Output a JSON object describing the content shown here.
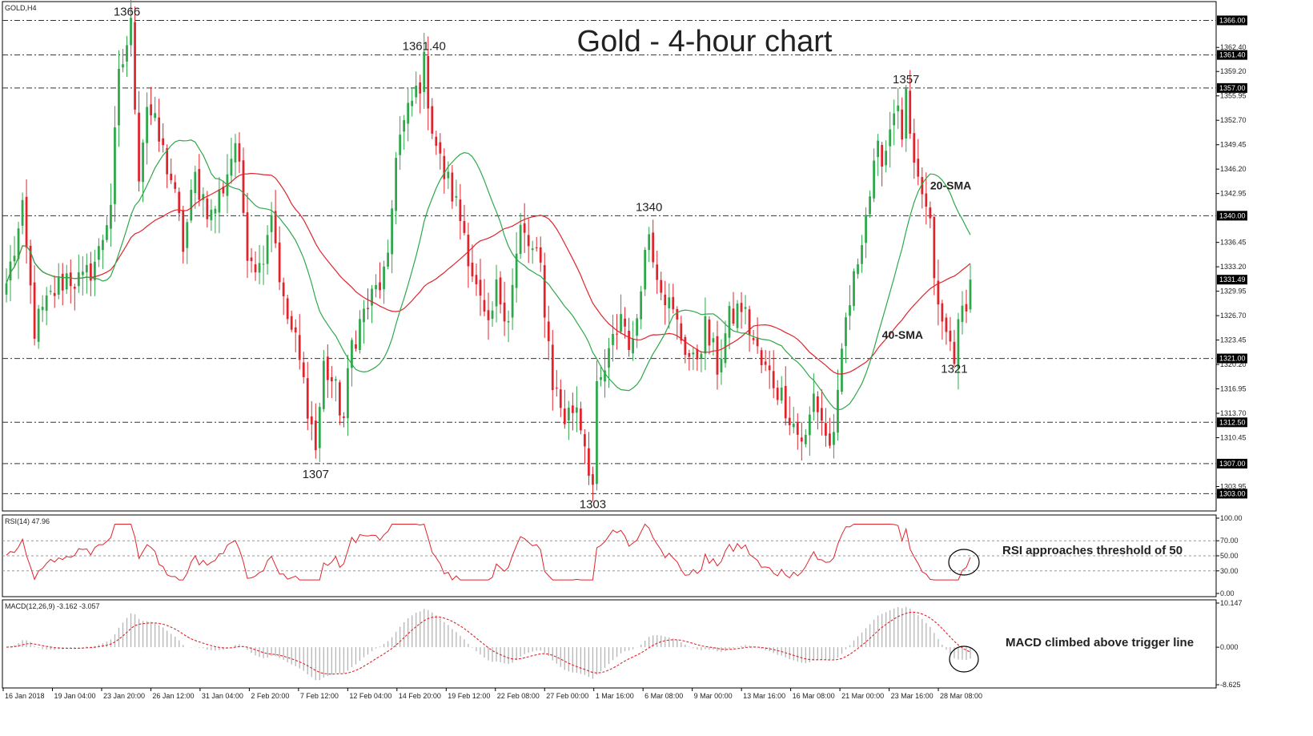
{
  "chart_data": {
    "type": "candlestick",
    "symbol_label": "GOLD,H4",
    "title": "Gold - 4-hour chart",
    "price_axis": {
      "ylim": [
        1300.7,
        1368.5
      ],
      "ticks": [
        "1362.40",
        "1359.20",
        "1355.95",
        "1352.70",
        "1349.45",
        "1346.20",
        "1342.95",
        "1336.45",
        "1333.20",
        "1329.95",
        "1326.70",
        "1323.45",
        "1320.20",
        "1316.95",
        "1313.70",
        "1310.45",
        "1303.95"
      ],
      "highlighted_levels": [
        {
          "value": 1366.0,
          "label": "1366.00"
        },
        {
          "value": 1361.4,
          "label": "1361.40"
        },
        {
          "value": 1357.0,
          "label": "1357.00"
        },
        {
          "value": 1340.0,
          "label": "1340.00"
        },
        {
          "value": 1331.49,
          "label": "1331.49"
        },
        {
          "value": 1321.0,
          "label": "1321.00"
        },
        {
          "value": 1312.5,
          "label": "1312.50"
        },
        {
          "value": 1307.0,
          "label": "1307.00"
        },
        {
          "value": 1303.0,
          "label": "1303.00"
        }
      ]
    },
    "horizontal_lines": [
      1366,
      1361.4,
      1357,
      1340,
      1321,
      1312.5,
      1307,
      1303
    ],
    "price_annotations": [
      {
        "text": "1366",
        "bar": 30,
        "value": 1366,
        "pos": "above"
      },
      {
        "text": "1361.40",
        "bar": 104,
        "value": 1361.4,
        "pos": "above"
      },
      {
        "text": "1357",
        "bar": 224,
        "value": 1357,
        "pos": "above"
      },
      {
        "text": "1340",
        "bar": 160,
        "value": 1340,
        "pos": "above"
      },
      {
        "text": "1307",
        "bar": 77,
        "value": 1307,
        "pos": "below"
      },
      {
        "text": "1303",
        "bar": 146,
        "value": 1303,
        "pos": "below"
      },
      {
        "text": "1321",
        "bar": 236,
        "value": 1321,
        "pos": "below"
      }
    ],
    "sma_labels": [
      {
        "text": "20-SMA",
        "color": "#2ea84a",
        "bar": 233,
        "value": 1343.5
      },
      {
        "text": "40-SMA",
        "color": "#e0242c",
        "bar": 221,
        "value": 1323.6
      }
    ],
    "x_labels": [
      "16 Jan 2018",
      "19 Jan 04:00",
      "23 Jan 20:00",
      "26 Jan 12:00",
      "31 Jan 04:00",
      "2 Feb 20:00",
      "7 Feb 12:00",
      "12 Feb 04:00",
      "14 Feb 20:00",
      "19 Feb 12:00",
      "22 Feb 08:00",
      "27 Feb 00:00",
      "1 Mar 16:00",
      "6 Mar 08:00",
      "9 Mar 00:00",
      "13 Mar 16:00",
      "16 Mar 08:00",
      "21 Mar 00:00",
      "23 Mar 16:00",
      "28 Mar 08:00"
    ],
    "close_path": [
      [
        0,
        1331
      ],
      [
        4,
        1340
      ],
      [
        7,
        1325
      ],
      [
        12,
        1330
      ],
      [
        15,
        1332
      ],
      [
        19,
        1331
      ],
      [
        23,
        1335
      ],
      [
        26,
        1342
      ],
      [
        28,
        1358
      ],
      [
        30,
        1363
      ],
      [
        31,
        1365
      ],
      [
        33,
        1346
      ],
      [
        35,
        1355
      ],
      [
        38,
        1350
      ],
      [
        41,
        1345
      ],
      [
        44,
        1336
      ],
      [
        47,
        1345
      ],
      [
        51,
        1340
      ],
      [
        54,
        1344
      ],
      [
        57,
        1350
      ],
      [
        60,
        1336
      ],
      [
        63,
        1333
      ],
      [
        66,
        1341
      ],
      [
        69,
        1328
      ],
      [
        72,
        1323
      ],
      [
        75,
        1315
      ],
      [
        77,
        1309
      ],
      [
        79,
        1320
      ],
      [
        81,
        1318
      ],
      [
        84,
        1313
      ],
      [
        86,
        1323
      ],
      [
        89,
        1327
      ],
      [
        92,
        1330
      ],
      [
        95,
        1333
      ],
      [
        97,
        1349
      ],
      [
        99,
        1352
      ],
      [
        101,
        1355
      ],
      [
        103,
        1358
      ],
      [
        104,
        1360
      ],
      [
        106,
        1352
      ],
      [
        108,
        1347
      ],
      [
        111,
        1343
      ],
      [
        114,
        1338
      ],
      [
        117,
        1330
      ],
      [
        120,
        1324
      ],
      [
        122,
        1330
      ],
      [
        125,
        1327
      ],
      [
        128,
        1338
      ],
      [
        130,
        1336
      ],
      [
        133,
        1333
      ],
      [
        136,
        1318
      ],
      [
        139,
        1313
      ],
      [
        142,
        1315
      ],
      [
        144,
        1310
      ],
      [
        146,
        1304
      ],
      [
        147,
        1316
      ],
      [
        150,
        1321
      ],
      [
        153,
        1327
      ],
      [
        156,
        1322
      ],
      [
        158,
        1332
      ],
      [
        160,
        1338
      ],
      [
        162,
        1333
      ],
      [
        165,
        1328
      ],
      [
        168,
        1324
      ],
      [
        171,
        1320
      ],
      [
        174,
        1325
      ],
      [
        177,
        1320
      ],
      [
        180,
        1326
      ],
      [
        183,
        1328
      ],
      [
        185,
        1325
      ],
      [
        188,
        1320
      ],
      [
        191,
        1318
      ],
      [
        194,
        1315
      ],
      [
        197,
        1311
      ],
      [
        199,
        1310
      ],
      [
        201,
        1316
      ],
      [
        203,
        1313
      ],
      [
        205,
        1309
      ],
      [
        207,
        1315
      ],
      [
        209,
        1326
      ],
      [
        211,
        1331
      ],
      [
        213,
        1338
      ],
      [
        215,
        1343
      ],
      [
        217,
        1348
      ],
      [
        219,
        1349
      ],
      [
        221,
        1355
      ],
      [
        223,
        1351
      ],
      [
        224,
        1355
      ],
      [
        226,
        1345
      ],
      [
        228,
        1343
      ],
      [
        230,
        1338
      ],
      [
        232,
        1327
      ],
      [
        234,
        1324
      ],
      [
        236,
        1322
      ],
      [
        238,
        1327
      ],
      [
        240,
        1331.5
      ]
    ],
    "ohlc_rule": "Candles are rendered from the close path with a deterministic pseudo-random wick generator",
    "sma_periods": [
      20,
      40
    ],
    "rsi": {
      "label": "RSI(14) 47.96",
      "ylim": [
        0,
        100
      ],
      "ticks": [
        "100.00",
        "70.00",
        "50.00",
        "30.00",
        "0.00"
      ],
      "levels": [
        70,
        50,
        30
      ],
      "annotation": "RSI approaches threshold of 50"
    },
    "macd": {
      "label": "MACD(12,26,9) -3.162 -3.057",
      "ylim": [
        -8.625,
        10.147
      ],
      "ticks": [
        "10.147",
        "0.000",
        "-8.625"
      ],
      "annotation": "MACD climbed above trigger line"
    },
    "colors": {
      "bull": "#2ea84a",
      "bear": "#e0242c",
      "sma20": "#2ea84a",
      "sma40": "#e0242c",
      "rsi": "#e0242c",
      "macd_hist": "#b5b5b5",
      "macd_signal": "#e0242c",
      "grid_line": "#333333",
      "axis_box": "#000000"
    }
  }
}
